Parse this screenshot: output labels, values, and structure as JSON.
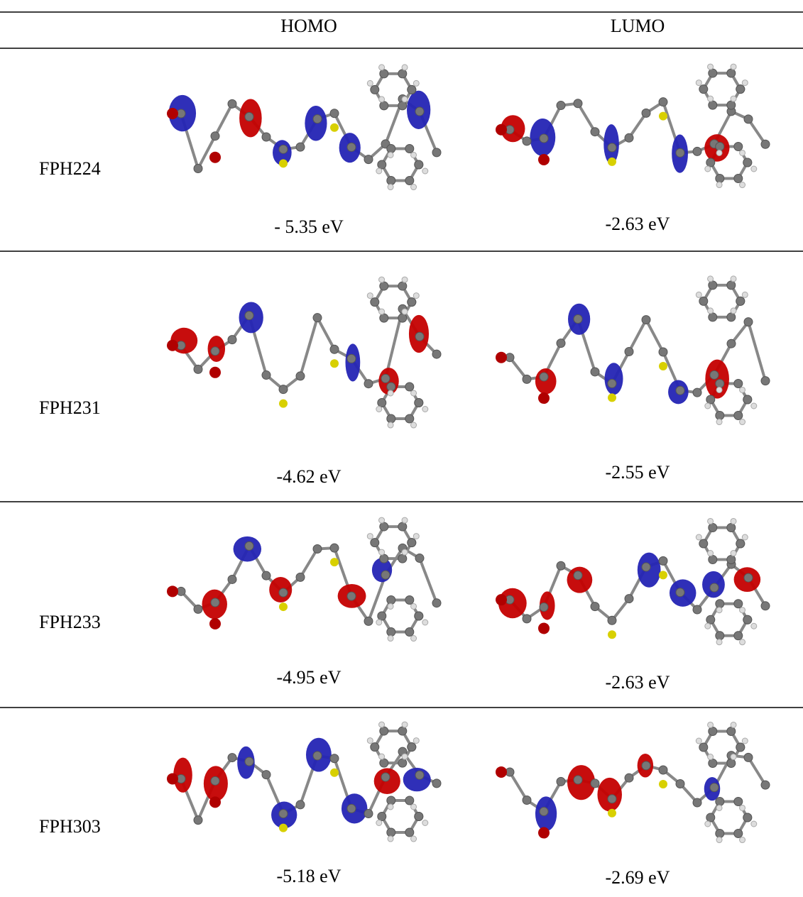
{
  "table": {
    "header": [
      "HOMO",
      "LUMO"
    ],
    "rows": [
      [
        "FPH224",
        "- 5.35 eV",
        "-2.63 eV"
      ],
      [
        "FPH231",
        "-4.62 eV",
        "-2.55 eV"
      ],
      [
        "FPH233",
        "-4.95 eV",
        "-2.63 eV"
      ],
      [
        "FPH303",
        "-5.18 eV",
        "-2.69 eV"
      ]
    ]
  }
}
